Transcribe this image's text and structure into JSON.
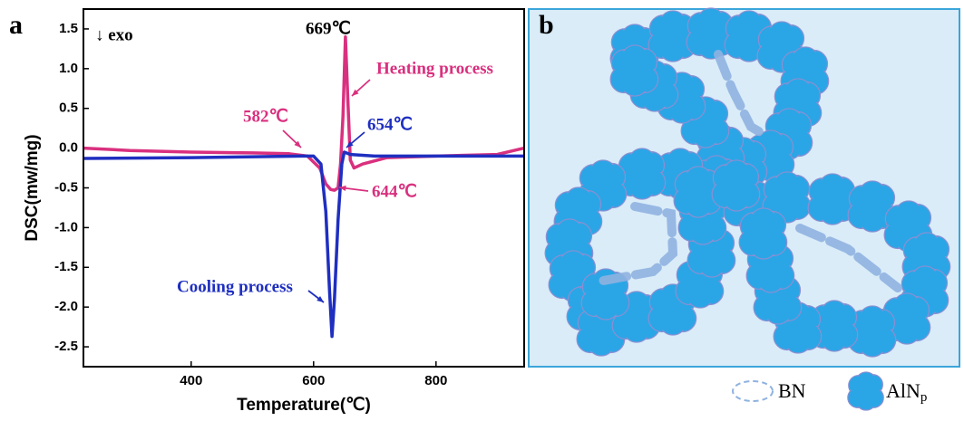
{
  "panel_a": {
    "label": "a"
  },
  "panel_b": {
    "label": "b",
    "legend": [
      {
        "label": "BN"
      },
      {
        "label": "AlN",
        "subscript": "p"
      }
    ]
  },
  "chart_data": {
    "type": "line",
    "xlabel": "Temperature(℃)",
    "ylabel": "DSC(mw/mg)",
    "xlim": [
      224,
      944
    ],
    "ylim": [
      -2.75,
      1.75
    ],
    "xticks": [
      400,
      600,
      800
    ],
    "yticks": [
      1.5,
      {
        "value": 1,
        "label": "1.0"
      },
      0.5,
      {
        "value": 0,
        "label": "0.0"
      },
      -0.5,
      {
        "value": -1,
        "label": "-1.0"
      },
      -1.5,
      {
        "value": -2,
        "label": "-2.0"
      },
      -2.5
    ],
    "series": [
      {
        "name": "Heating process",
        "color": "#d9307f",
        "x": [
          224,
          300,
          400,
          500,
          560,
          590,
          610,
          620,
          628,
          634,
          640,
          644,
          648,
          652,
          656,
          660,
          666,
          680,
          720,
          800,
          900,
          944
        ],
        "values": [
          0.0,
          -0.03,
          -0.05,
          -0.06,
          -0.07,
          -0.1,
          -0.25,
          -0.45,
          -0.52,
          -0.53,
          -0.5,
          -0.2,
          0.4,
          1.4,
          0.6,
          -0.15,
          -0.25,
          -0.2,
          -0.12,
          -0.1,
          -0.08,
          0.0
        ]
      },
      {
        "name": "Cooling process",
        "color": "#1f2fc0",
        "x": [
          224,
          400,
          580,
          600,
          612,
          620,
          626,
          630,
          634,
          640,
          646,
          650,
          660,
          700,
          800,
          944
        ],
        "values": [
          -0.13,
          -0.12,
          -0.1,
          -0.1,
          -0.2,
          -0.8,
          -1.8,
          -2.37,
          -1.9,
          -0.9,
          -0.2,
          -0.05,
          -0.08,
          -0.1,
          -0.1,
          -0.1
        ]
      }
    ],
    "annotations": [
      {
        "text": "↓ exo",
        "color": "#000000"
      },
      {
        "text": "669℃",
        "color": "#000000"
      },
      {
        "text": "582℃",
        "color": "#d9307f"
      },
      {
        "text": "654℃",
        "color": "#1f2fc0"
      },
      {
        "text": "644℃",
        "color": "#d9307f"
      }
    ]
  }
}
